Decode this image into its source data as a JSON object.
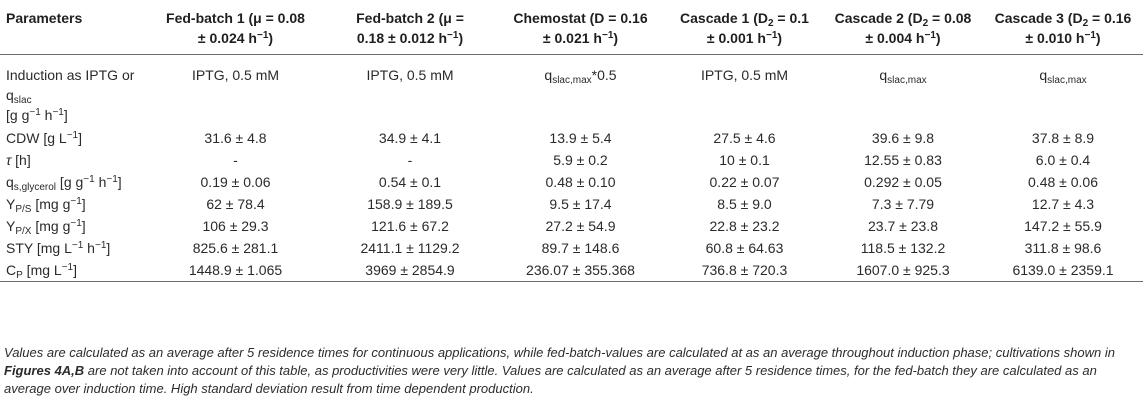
{
  "table": {
    "headers": [
      {
        "main": "Parameters",
        "cond": ""
      },
      {
        "main": "Fed-batch 1 (μ = 0.08",
        "cond": "± 0.024 h",
        "sup": "−1",
        "tail": ")"
      },
      {
        "main": "Fed-batch 2 (μ =",
        "cond": "0.18 ± 0.012 h",
        "sup": "−1",
        "tail": ")"
      },
      {
        "main": "Chemostat (D = 0.16",
        "cond": "± 0.021 h",
        "sup": "−1",
        "tail": ")"
      },
      {
        "main": "Cascade 1 (D",
        "sub": "2",
        "main2": " = 0.1",
        "cond": "± 0.001 h",
        "sup": "−1",
        "tail": ")"
      },
      {
        "main": "Cascade 2 (D",
        "sub": "2",
        "main2": " = 0.08",
        "cond": "± 0.004 h",
        "sup": "−1",
        "tail": ")"
      },
      {
        "main": "Cascade 3 (D",
        "sub": "2",
        "main2": " = 0.16",
        "cond": "± 0.010 h",
        "sup": "−1",
        "tail": ")"
      }
    ],
    "rows": [
      {
        "param": {
          "a": "Induction as IPTG or q",
          "sub": "slac",
          "b": " [g g",
          "sup1": "−1",
          "c": " h",
          "sup2": "−1",
          "d": "]"
        },
        "values": [
          {
            "a": "IPTG, 0.5 mM"
          },
          {
            "a": "IPTG, 0.5 mM"
          },
          {
            "a": "q",
            "sub": "slac,max",
            "b": "*0.5"
          },
          {
            "a": "IPTG, 0.5 mM"
          },
          {
            "a": "q",
            "sub": "slac,max",
            "b": ""
          },
          {
            "a": "q",
            "sub": "slac,max",
            "b": ""
          }
        ]
      },
      {
        "param": {
          "a": "CDW [g L",
          "sup1": "−1",
          "d": "]"
        },
        "values": [
          "31.6 ± 4.8",
          "34.9 ± 4.1",
          "13.9 ± 5.4",
          "27.5 ± 4.6",
          "39.6 ± 9.8",
          "37.8 ± 8.9"
        ]
      },
      {
        "param": {
          "greek": "τ",
          "d": " [h]"
        },
        "values": [
          "-",
          "-",
          "5.9 ± 0.2",
          "10 ± 0.1",
          "12.55 ± 0.83",
          "6.0 ± 0.4"
        ]
      },
      {
        "param": {
          "a": "q",
          "sub": "s,glycerol",
          "b": " [g g",
          "sup1": "−1",
          "c": " h",
          "sup2": "−1",
          "d": "]"
        },
        "values": [
          "0.19 ± 0.06",
          "0.54 ± 0.1",
          "0.48 ± 0.10",
          "0.22 ± 0.07",
          "0.292 ± 0.05",
          "0.48 ± 0.06"
        ]
      },
      {
        "param": {
          "a": "Y",
          "sub": "P/S",
          "b": " [mg g",
          "sup1": "−1",
          "d": "]"
        },
        "values": [
          "62 ± 78.4",
          "158.9 ± 189.5",
          "9.5 ± 17.4",
          "8.5 ± 9.0",
          "7.3 ± 7.79",
          "12.7 ± 4.3"
        ]
      },
      {
        "param": {
          "a": "Y",
          "sub": "P/X",
          "b": " [mg g",
          "sup1": "−1",
          "d": "]"
        },
        "values": [
          "106 ± 29.3",
          "121.6 ± 67.2",
          "27.2 ± 54.9",
          "22.8 ± 23.2",
          "23.7 ± 23.8",
          "147.2 ± 55.9"
        ]
      },
      {
        "param": {
          "a": "STY [mg L",
          "sup1": "−1",
          "c": " h",
          "sup2": "−1",
          "d": "]"
        },
        "values": [
          "825.6 ± 281.1",
          "2411.1 ± 1129.2",
          "89.7 ± 148.6",
          "60.8 ± 64.63",
          "118.5 ± 132.2",
          "311.8 ± 98.6"
        ]
      },
      {
        "param": {
          "a": "C",
          "sub": "P",
          "b": " [mg L",
          "sup1": "−1",
          "d": "]"
        },
        "values": [
          "1448.9 ± 1.065",
          "3969 ± 2854.9",
          "236.07 ± 355.368",
          "736.8 ± 720.3",
          "1607.0 ± 925.3",
          "6139.0 ± 2359.1"
        ]
      }
    ]
  },
  "footnote": {
    "part1": "Values are calculated as an average after 5 residence times for continuous applications, while fed-batch-values are calculated at as an average throughout induction phase; cultivations shown in ",
    "bold": "Figures 4A,B",
    "part2": " are not taken into account of this table, as productivities were very little. Values are calculated as an average after 5 residence times, for the fed-batch they are calculated as an average over induction time. High standard deviation result from time dependent production."
  }
}
